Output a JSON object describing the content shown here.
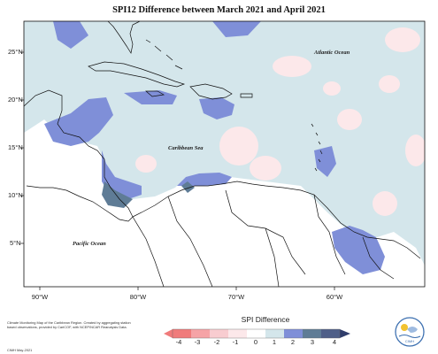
{
  "title": "SPI12 Difference between March 2021 and April 2021",
  "axes": {
    "lat_ticks": [
      "25°N",
      "20°N",
      "15°N",
      "10°N",
      "5°N"
    ],
    "lon_ticks": [
      "90°W",
      "80°W",
      "70°W",
      "60°W"
    ]
  },
  "labels": {
    "atlantic": "Atlantic Ocean",
    "caribbean": "Caribbean Sea",
    "pacific": "Pacific Ocean"
  },
  "footer": {
    "note": "Climate Monitoring Map of the Caribbean Region. Created by aggregating station based observations, provided by CariCOF, with NCEP/NCAR Reanalysis Data.",
    "credit": "CIMH May-2021"
  },
  "legend": {
    "title": "SPI Difference",
    "ticks": [
      "-4",
      "-3",
      "-2",
      "-1",
      "0",
      "1",
      "2",
      "3",
      "4"
    ],
    "colors": [
      "#f07b7b",
      "#f6a3a6",
      "#f8ccd0",
      "#fce8ea",
      "#d4e6eb",
      "#7f8fd8",
      "#8aa5c2",
      "#5f7c96",
      "#303d6b"
    ]
  },
  "logo": {
    "text": "CIMH"
  },
  "colors": {
    "positive_light": "#d4e6eb",
    "positive_mid": "#7f8fd8",
    "positive_dark": "#5f7c96",
    "negative_light": "#fce8ea",
    "land_outline": "#111111"
  }
}
